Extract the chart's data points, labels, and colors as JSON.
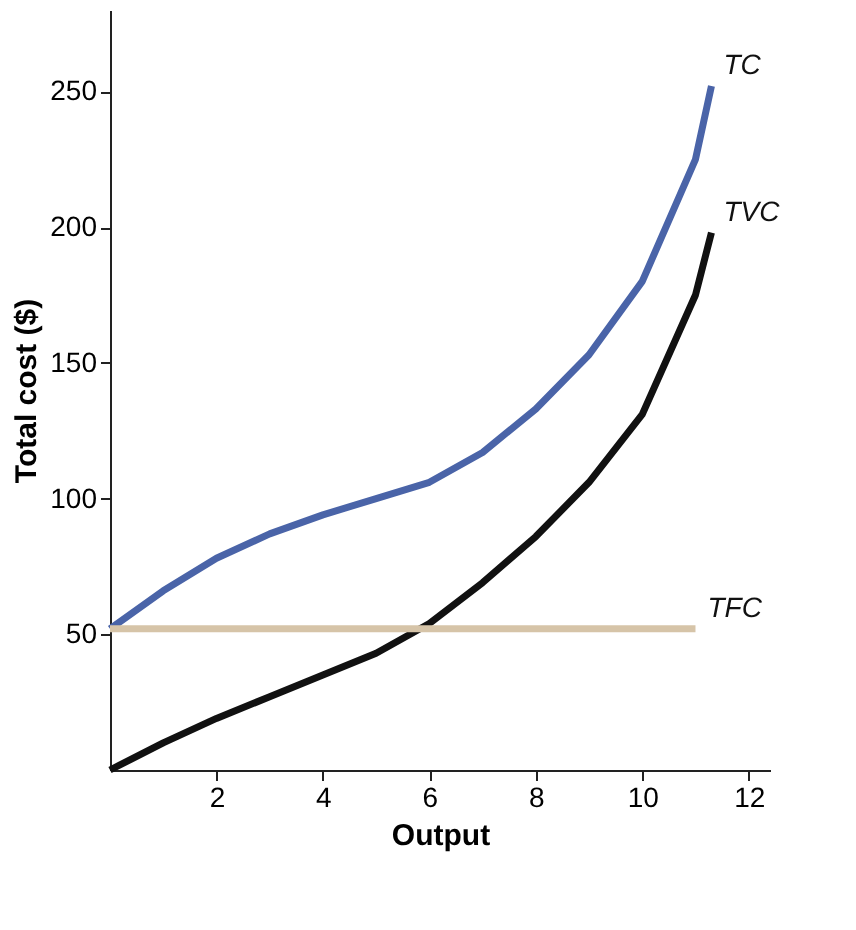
{
  "chart_data": {
    "type": "line",
    "xlabel": "Output",
    "ylabel": "Total cost ($)",
    "xlim": [
      0,
      12.4
    ],
    "ylim": [
      0,
      280
    ],
    "xticks": [
      2,
      4,
      6,
      8,
      10,
      12
    ],
    "yticks": [
      50,
      100,
      150,
      200,
      250
    ],
    "grid": false,
    "legend": false,
    "marker": "none",
    "line_style": "solid",
    "series": [
      {
        "name": "TC",
        "color": "#4a64a8",
        "x": [
          0,
          1,
          2,
          3,
          4,
          5,
          6,
          7,
          8,
          9,
          10,
          11,
          11.3
        ],
        "values": [
          52,
          66,
          78,
          87,
          94,
          100,
          106,
          117,
          133,
          153,
          180,
          225,
          252
        ]
      },
      {
        "name": "TVC",
        "color": "#111111",
        "x": [
          0,
          1,
          2,
          3,
          4,
          5,
          6,
          7,
          8,
          9,
          10,
          11,
          11.3
        ],
        "values": [
          0,
          10,
          19,
          27,
          35,
          43,
          54,
          69,
          86,
          106,
          131,
          175,
          198
        ]
      },
      {
        "name": "TFC",
        "color": "#d6c4a8",
        "x": [
          0,
          11
        ],
        "values": [
          52,
          52
        ]
      }
    ]
  }
}
